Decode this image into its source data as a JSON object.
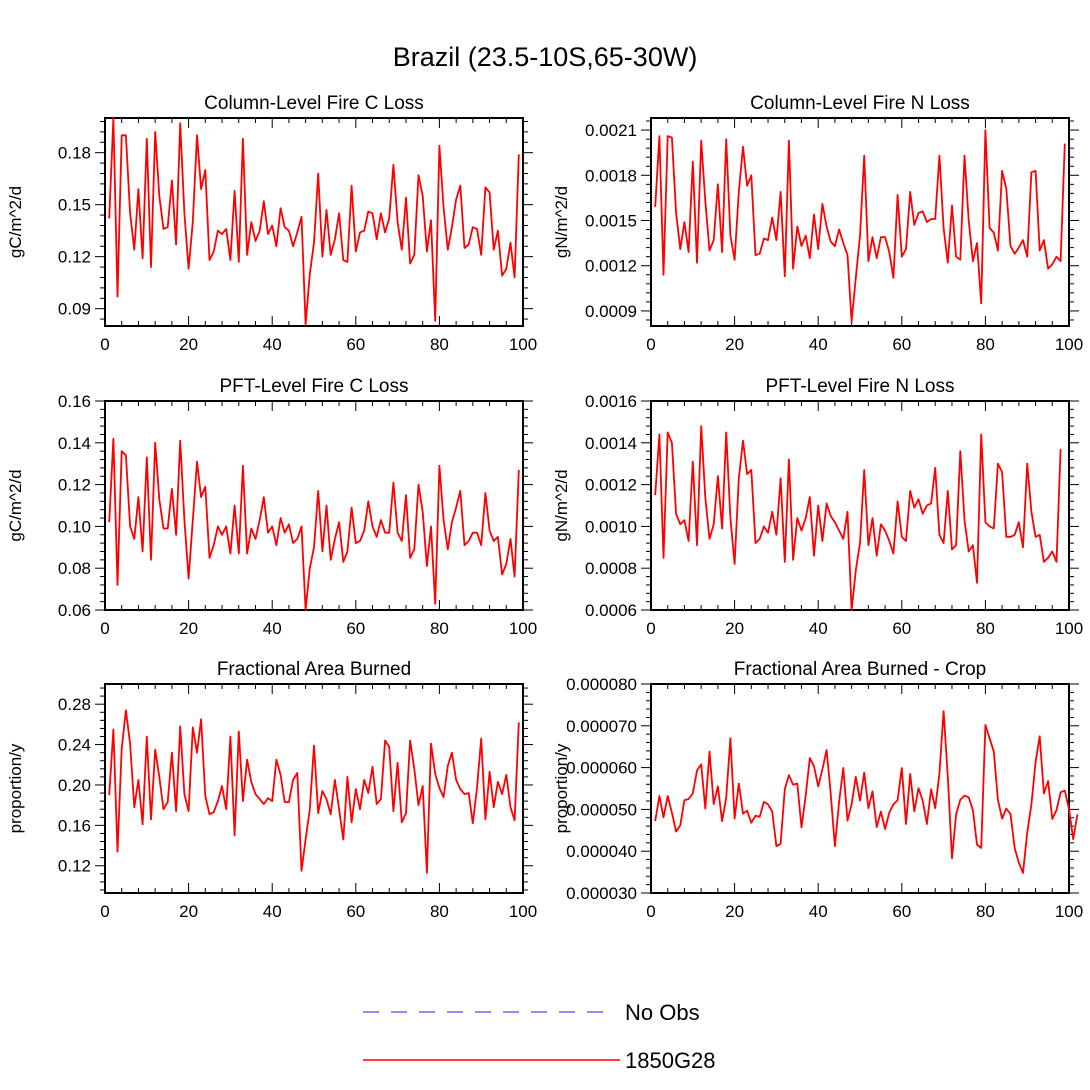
{
  "title": "Brazil (23.5-10S,65-30W)",
  "legend": {
    "entries": [
      {
        "label": "No Obs",
        "color": "#6666ff",
        "style": "dashed"
      },
      {
        "label": "1850G28",
        "color": "#ff0000",
        "style": "solid"
      }
    ]
  },
  "colors": {
    "series": "#ff0000"
  },
  "chart_data": [
    {
      "type": "line",
      "title": "Column-Level Fire C Loss",
      "ylabel": "gC/m^2/d",
      "xlabel": "",
      "xlim": [
        0,
        100
      ],
      "ylim": [
        0.08,
        0.2
      ],
      "xticks": [
        0,
        20,
        40,
        60,
        80,
        100
      ],
      "xtick_labels": [
        "0",
        "20",
        "40",
        "60",
        "80",
        "100"
      ],
      "yticks": [
        0.09,
        0.12,
        0.15,
        0.18
      ],
      "ytick_labels": [
        "0.09",
        "0.12",
        "0.15",
        "0.18"
      ],
      "series": [
        {
          "name": "1850G28",
          "values": [
            0.142,
            0.2,
            0.097,
            0.19,
            0.19,
            0.145,
            0.124,
            0.159,
            0.119,
            0.188,
            0.114,
            0.192,
            0.155,
            0.136,
            0.137,
            0.164,
            0.127,
            0.197,
            0.145,
            0.113,
            0.14,
            0.19,
            0.159,
            0.17,
            0.118,
            0.123,
            0.135,
            0.133,
            0.136,
            0.118,
            0.158,
            0.117,
            0.188,
            0.121,
            0.14,
            0.129,
            0.135,
            0.152,
            0.133,
            0.138,
            0.126,
            0.148,
            0.137,
            0.135,
            0.126,
            0.134,
            0.143,
            0.081,
            0.11,
            0.128,
            0.168,
            0.12,
            0.147,
            0.121,
            0.13,
            0.145,
            0.118,
            0.117,
            0.161,
            0.123,
            0.134,
            0.135,
            0.146,
            0.145,
            0.13,
            0.145,
            0.134,
            0.142,
            0.173,
            0.14,
            0.124,
            0.154,
            0.116,
            0.121,
            0.167,
            0.155,
            0.123,
            0.141,
            0.083,
            0.184,
            0.148,
            0.124,
            0.137,
            0.153,
            0.161,
            0.125,
            0.127,
            0.137,
            0.136,
            0.121,
            0.16,
            0.157,
            0.124,
            0.135,
            0.109,
            0.113,
            0.128,
            0.108,
            0.179
          ]
        }
      ]
    },
    {
      "type": "line",
      "title": "Column-Level Fire N Loss",
      "ylabel": "gN/m^2/d",
      "xlabel": "",
      "xlim": [
        0,
        100
      ],
      "ylim": [
        0.0008,
        0.00218
      ],
      "xticks": [
        0,
        20,
        40,
        60,
        80,
        100
      ],
      "xtick_labels": [
        "0",
        "20",
        "40",
        "60",
        "80",
        "100"
      ],
      "yticks": [
        0.0009,
        0.0012,
        0.0015,
        0.0018,
        0.0021
      ],
      "ytick_labels": [
        "0.0009",
        "0.0012",
        "0.0015",
        "0.0018",
        "0.0021"
      ],
      "series": [
        {
          "name": "1850G28",
          "values": [
            0.00159,
            0.00206,
            0.00114,
            0.00206,
            0.00205,
            0.00155,
            0.00131,
            0.00149,
            0.00129,
            0.00189,
            0.00122,
            0.00203,
            0.00163,
            0.0013,
            0.00137,
            0.00174,
            0.00129,
            0.00204,
            0.0014,
            0.00124,
            0.00169,
            0.00199,
            0.00173,
            0.0018,
            0.00127,
            0.00128,
            0.00138,
            0.00137,
            0.00152,
            0.00137,
            0.00169,
            0.00113,
            0.00203,
            0.00118,
            0.00146,
            0.00133,
            0.0014,
            0.00125,
            0.00154,
            0.00131,
            0.00161,
            0.00146,
            0.00136,
            0.00133,
            0.00144,
            0.00135,
            0.00127,
            0.00083,
            0.00112,
            0.0014,
            0.00193,
            0.00123,
            0.00139,
            0.00125,
            0.00139,
            0.00139,
            0.00129,
            0.00112,
            0.00167,
            0.00126,
            0.00131,
            0.00169,
            0.00147,
            0.00155,
            0.00156,
            0.00149,
            0.00151,
            0.00151,
            0.00193,
            0.00145,
            0.00122,
            0.0016,
            0.00126,
            0.00124,
            0.00193,
            0.0015,
            0.00123,
            0.00135,
            0.00095,
            0.0021,
            0.00145,
            0.00142,
            0.0013,
            0.00183,
            0.00171,
            0.00133,
            0.00128,
            0.00132,
            0.00137,
            0.00126,
            0.00182,
            0.00183,
            0.0013,
            0.00137,
            0.00118,
            0.00121,
            0.00126,
            0.00123,
            0.00201
          ]
        }
      ]
    },
    {
      "type": "line",
      "title": "PFT-Level Fire C Loss",
      "ylabel": "gC/m^2/d",
      "xlabel": "",
      "xlim": [
        0,
        100
      ],
      "ylim": [
        0.06,
        0.16
      ],
      "xticks": [
        0,
        20,
        40,
        60,
        80,
        100
      ],
      "xtick_labels": [
        "0",
        "20",
        "40",
        "60",
        "80",
        "100"
      ],
      "yticks": [
        0.06,
        0.08,
        0.1,
        0.12,
        0.14,
        0.16
      ],
      "ytick_labels": [
        "0.06",
        "0.08",
        "0.10",
        "0.12",
        "0.14",
        "0.16"
      ],
      "series": [
        {
          "name": "1850G28",
          "values": [
            0.102,
            0.142,
            0.072,
            0.136,
            0.134,
            0.1,
            0.094,
            0.114,
            0.088,
            0.133,
            0.084,
            0.14,
            0.113,
            0.099,
            0.099,
            0.118,
            0.096,
            0.141,
            0.103,
            0.075,
            0.103,
            0.131,
            0.114,
            0.119,
            0.085,
            0.091,
            0.1,
            0.096,
            0.1,
            0.087,
            0.11,
            0.087,
            0.129,
            0.087,
            0.099,
            0.094,
            0.103,
            0.114,
            0.097,
            0.1,
            0.091,
            0.104,
            0.097,
            0.101,
            0.092,
            0.094,
            0.1,
            0.06,
            0.08,
            0.09,
            0.117,
            0.088,
            0.11,
            0.084,
            0.094,
            0.102,
            0.083,
            0.088,
            0.109,
            0.092,
            0.093,
            0.098,
            0.112,
            0.1,
            0.095,
            0.103,
            0.097,
            0.097,
            0.121,
            0.097,
            0.093,
            0.115,
            0.085,
            0.089,
            0.12,
            0.107,
            0.081,
            0.1,
            0.063,
            0.129,
            0.103,
            0.089,
            0.102,
            0.109,
            0.117,
            0.091,
            0.093,
            0.097,
            0.097,
            0.091,
            0.116,
            0.098,
            0.093,
            0.095,
            0.077,
            0.082,
            0.094,
            0.076,
            0.127
          ]
        }
      ]
    },
    {
      "type": "line",
      "title": "PFT-Level Fire N Loss",
      "ylabel": "gN/m^2/d",
      "xlabel": "",
      "xlim": [
        0,
        100
      ],
      "ylim": [
        0.0006,
        0.0016
      ],
      "xticks": [
        0,
        20,
        40,
        60,
        80,
        100
      ],
      "xtick_labels": [
        "0",
        "20",
        "40",
        "60",
        "80",
        "100"
      ],
      "yticks": [
        0.0006,
        0.0008,
        0.001,
        0.0012,
        0.0014,
        0.0016
      ],
      "ytick_labels": [
        "0.0006",
        "0.0008",
        "0.0010",
        "0.0012",
        "0.0014",
        "0.0016"
      ],
      "series": [
        {
          "name": "1850G28",
          "values": [
            0.00115,
            0.00144,
            0.00085,
            0.00145,
            0.0014,
            0.00106,
            0.00101,
            0.00103,
            0.00093,
            0.00131,
            0.00091,
            0.00148,
            0.00114,
            0.00094,
            0.00101,
            0.00124,
            0.00099,
            0.00145,
            0.00104,
            0.00082,
            0.00123,
            0.00141,
            0.00125,
            0.00127,
            0.00092,
            0.00094,
            0.001,
            0.00097,
            0.00107,
            0.00096,
            0.00123,
            0.00083,
            0.00132,
            0.00084,
            0.00104,
            0.00098,
            0.00104,
            0.00114,
            0.00086,
            0.0011,
            0.00093,
            0.00111,
            0.00105,
            0.00102,
            0.00098,
            0.00094,
            0.00107,
            0.0006,
            0.00079,
            0.00092,
            0.00127,
            0.00091,
            0.00104,
            0.00086,
            0.00101,
            0.00098,
            0.00093,
            0.00087,
            0.00112,
            0.00095,
            0.00093,
            0.00117,
            0.00109,
            0.00113,
            0.00106,
            0.0011,
            0.00111,
            0.00128,
            0.00096,
            0.00092,
            0.00117,
            0.00089,
            0.00091,
            0.00136,
            0.00103,
            0.00088,
            0.00091,
            0.00073,
            0.00144,
            0.00102,
            0.001,
            0.00099,
            0.0013,
            0.00126,
            0.00095,
            0.00095,
            0.00096,
            0.00102,
            0.0009,
            0.0013,
            0.00107,
            0.00095,
            0.00096,
            0.00083,
            0.00085,
            0.00088,
            0.00083,
            0.00137
          ]
        }
      ]
    },
    {
      "type": "line",
      "title": "Fractional Area Burned",
      "ylabel": "proportion/y",
      "xlabel": "",
      "xlim": [
        0,
        100
      ],
      "ylim": [
        0.093,
        0.3
      ],
      "xticks": [
        0,
        20,
        40,
        60,
        80,
        100
      ],
      "xtick_labels": [
        "0",
        "20",
        "40",
        "60",
        "80",
        "100"
      ],
      "yticks": [
        0.12,
        0.16,
        0.2,
        0.24,
        0.28
      ],
      "ytick_labels": [
        "0.12",
        "0.16",
        "0.20",
        "0.24",
        "0.28"
      ],
      "series": [
        {
          "name": "1850G28",
          "values": [
            0.19,
            0.255,
            0.134,
            0.236,
            0.274,
            0.241,
            0.178,
            0.205,
            0.161,
            0.248,
            0.166,
            0.235,
            0.208,
            0.176,
            0.183,
            0.232,
            0.174,
            0.258,
            0.191,
            0.174,
            0.257,
            0.232,
            0.265,
            0.189,
            0.171,
            0.173,
            0.184,
            0.199,
            0.176,
            0.248,
            0.15,
            0.253,
            0.184,
            0.225,
            0.203,
            0.191,
            0.186,
            0.181,
            0.187,
            0.184,
            0.225,
            0.21,
            0.183,
            0.183,
            0.205,
            0.212,
            0.115,
            0.146,
            0.176,
            0.239,
            0.172,
            0.194,
            0.186,
            0.171,
            0.205,
            0.176,
            0.146,
            0.208,
            0.163,
            0.196,
            0.176,
            0.205,
            0.192,
            0.218,
            0.181,
            0.186,
            0.244,
            0.238,
            0.174,
            0.222,
            0.163,
            0.172,
            0.244,
            0.216,
            0.18,
            0.199,
            0.113,
            0.241,
            0.211,
            0.197,
            0.188,
            0.219,
            0.232,
            0.205,
            0.196,
            0.191,
            0.192,
            0.162,
            0.197,
            0.246,
            0.166,
            0.213,
            0.178,
            0.203,
            0.191,
            0.21,
            0.178,
            0.165,
            0.262
          ]
        }
      ]
    },
    {
      "type": "line",
      "title": "Fractional Area Burned - Crop",
      "ylabel": "proportion/y",
      "xlabel": "",
      "xlim": [
        0,
        100
      ],
      "ylim": [
        3e-05,
        8e-05
      ],
      "xticks": [
        0,
        20,
        40,
        60,
        80,
        100
      ],
      "xtick_labels": [
        "0",
        "20",
        "40",
        "60",
        "80",
        "100"
      ],
      "yticks": [
        3e-05,
        4e-05,
        5e-05,
        6e-05,
        7e-05,
        8e-05
      ],
      "ytick_labels": [
        "0.000030",
        "0.000040",
        "0.000050",
        "0.000060",
        "0.000070",
        "0.000080"
      ],
      "series": [
        {
          "name": "1850G28",
          "values": [
            4.72e-05,
            5.32e-05,
            4.81e-05,
            5.32e-05,
            4.92e-05,
            4.47e-05,
            4.62e-05,
            5.22e-05,
            5.25e-05,
            5.38e-05,
            5.93e-05,
            6.08e-05,
            5.02e-05,
            6.38e-05,
            5.13e-05,
            5.55e-05,
            4.72e-05,
            5.28e-05,
            6.7e-05,
            4.78e-05,
            5.62e-05,
            4.9e-05,
            4.97e-05,
            4.68e-05,
            4.85e-05,
            4.82e-05,
            5.18e-05,
            5.12e-05,
            4.95e-05,
            4.12e-05,
            4.18e-05,
            5.48e-05,
            5.82e-05,
            5.59e-05,
            5.62e-05,
            4.57e-05,
            5.33e-05,
            6.23e-05,
            6.03e-05,
            5.55e-05,
            5.96e-05,
            6.42e-05,
            5.38e-05,
            4.12e-05,
            5.18e-05,
            5.99e-05,
            4.73e-05,
            5.12e-05,
            5.78e-05,
            5.21e-05,
            5.88e-05,
            5.03e-05,
            5.43e-05,
            4.58e-05,
            4.95e-05,
            4.53e-05,
            4.92e-05,
            5.12e-05,
            5.22e-05,
            5.99e-05,
            4.65e-05,
            5.85e-05,
            4.95e-05,
            5.51e-05,
            5.21e-05,
            4.65e-05,
            5.48e-05,
            5.03e-05,
            5.85e-05,
            7.35e-05,
            5.78e-05,
            3.83e-05,
            4.88e-05,
            5.23e-05,
            5.33e-05,
            5.29e-05,
            4.98e-05,
            4.16e-05,
            4.08e-05,
            7.02e-05,
            6.7e-05,
            6.38e-05,
            5.23e-05,
            4.78e-05,
            5.02e-05,
            4.89e-05,
            4.07e-05,
            3.73e-05,
            3.48e-05,
            4.44e-05,
            5.12e-05,
            6.14e-05,
            6.75e-05,
            5.38e-05,
            5.68e-05,
            4.77e-05,
            4.98e-05,
            5.41e-05,
            5.45e-05,
            5.01e-05,
            4.29e-05,
            4.88e-05
          ]
        }
      ]
    }
  ]
}
